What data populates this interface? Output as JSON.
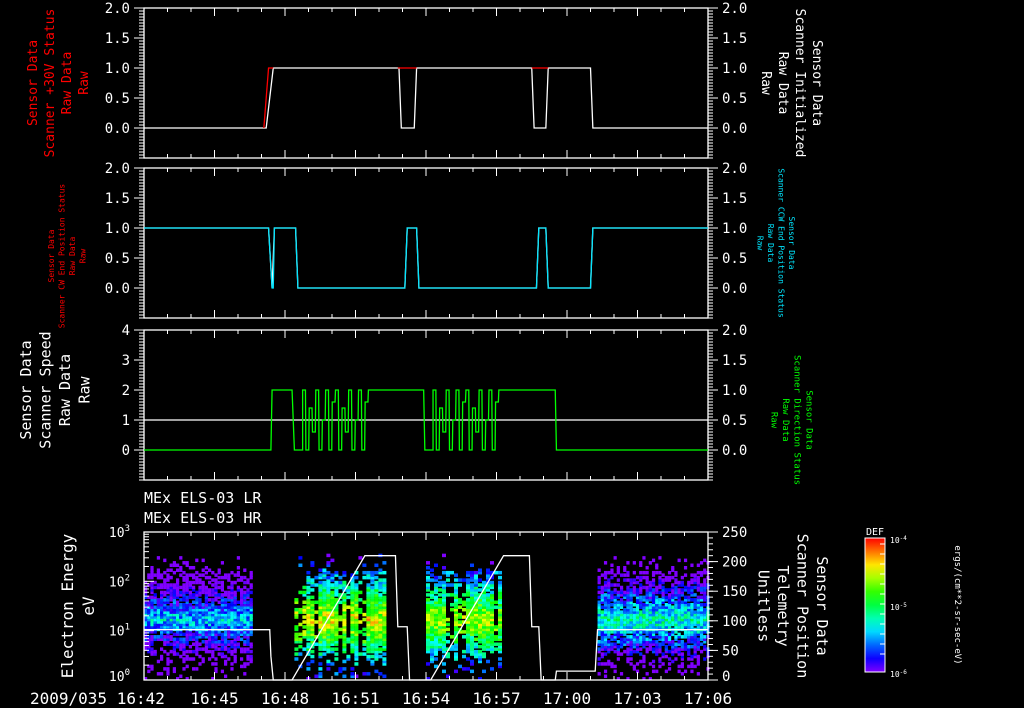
{
  "chart_data": [
    {
      "type": "line",
      "panel": "scanner-30v-initialized",
      "left_label": [
        "Sensor Data",
        "Scanner +30V Status",
        "Raw Data",
        "Raw"
      ],
      "right_label": [
        "Sensor Data",
        "Scanner Initialized",
        "Raw Data",
        "Raw"
      ],
      "left_color": "#ff0000",
      "right_color": "#ffffff",
      "ylim": [
        -0.5,
        2.0
      ],
      "yticks": [
        "0.0",
        "0.5",
        "1.0",
        "1.5",
        "2.0"
      ],
      "series": [
        {
          "name": "Scanner Initialized",
          "color": "#ffffff",
          "points": [
            [
              0,
              0
            ],
            [
              5.2,
              0
            ],
            [
              5.5,
              1
            ],
            [
              10.85,
              1
            ],
            [
              10.95,
              0
            ],
            [
              11.5,
              0
            ],
            [
              11.6,
              1
            ],
            [
              16.5,
              1
            ],
            [
              16.6,
              0
            ],
            [
              17.1,
              0
            ],
            [
              17.2,
              1
            ],
            [
              19.0,
              1
            ],
            [
              19.1,
              0
            ],
            [
              24,
              0
            ]
          ]
        },
        {
          "name": "Scanner +30V Status",
          "color": "#ff0000",
          "points": [
            [
              5.1,
              0
            ],
            [
              5.2,
              0.5
            ],
            [
              5.3,
              1
            ],
            [
              5.5,
              1
            ]
          ],
          "segments": [
            [
              [
                10.8,
                1
              ],
              [
                11.6,
                1
              ]
            ],
            [
              [
                16.5,
                1
              ],
              [
                17.2,
                1
              ]
            ]
          ]
        }
      ]
    },
    {
      "type": "line",
      "panel": "ccw-end-position",
      "left_label": [
        "Sensor Data",
        "Scanner CW End Position Status",
        "Raw Data",
        "Raw"
      ],
      "right_label": [
        "Sensor Data",
        "Scanner CCW End Position Status",
        "Raw Data",
        "Raw"
      ],
      "left_color": "#ff0000",
      "right_color": "#00e5ff",
      "ylim": [
        -0.5,
        2.0
      ],
      "yticks": [
        "0.0",
        "0.5",
        "1.0",
        "1.5",
        "2.0"
      ],
      "series": [
        {
          "name": "Scanner CW End Position Status",
          "color": "#ffffff",
          "points": [
            [
              0,
              1
            ],
            [
              5.3,
              1
            ],
            [
              5.45,
              0
            ],
            [
              5.55,
              1
            ],
            [
              6.45,
              1
            ],
            [
              6.55,
              0
            ],
            [
              11.1,
              0
            ],
            [
              11.2,
              1
            ],
            [
              11.6,
              1
            ],
            [
              11.7,
              0
            ],
            [
              16.7,
              0
            ],
            [
              16.8,
              1
            ],
            [
              17.1,
              1
            ],
            [
              17.2,
              0
            ],
            [
              19.0,
              0
            ],
            [
              19.1,
              1
            ],
            [
              24,
              1
            ]
          ]
        },
        {
          "name": "Scanner CCW End Position Status",
          "color": "#00e5ff",
          "points": [
            [
              0,
              1
            ],
            [
              5.3,
              1
            ],
            [
              5.45,
              0
            ],
            [
              5.5,
              0
            ],
            [
              5.55,
              1
            ],
            [
              6.45,
              1
            ],
            [
              6.55,
              0
            ],
            [
              11.1,
              0
            ],
            [
              11.2,
              1
            ],
            [
              11.6,
              1
            ],
            [
              11.7,
              0
            ],
            [
              16.7,
              0
            ],
            [
              16.8,
              1
            ],
            [
              17.1,
              1
            ],
            [
              17.2,
              0
            ],
            [
              19.0,
              0
            ],
            [
              19.1,
              1
            ],
            [
              24,
              1
            ]
          ]
        }
      ]
    },
    {
      "type": "line",
      "panel": "speed-direction",
      "left_label": [
        "Sensor Data",
        "Scanner Speed",
        "Raw Data",
        "Raw"
      ],
      "right_label": [
        "Sensor Data",
        "Scanner Direction Status",
        "Raw Data",
        "Raw"
      ],
      "left_color": "#ffffff",
      "right_color": "#00ff00",
      "ylim_left": [
        -1,
        4
      ],
      "yticks_left": [
        "0",
        "1",
        "2",
        "3",
        "4"
      ],
      "ylim_right": [
        -0.5,
        2.0
      ],
      "yticks_right": [
        "0.0",
        "0.5",
        "1.0",
        "1.5",
        "2.0"
      ],
      "speed": {
        "name": "Scanner Speed",
        "color": "#ffffff",
        "points": [
          [
            0,
            1
          ],
          [
            24,
            1
          ]
        ]
      },
      "direction": {
        "name": "Scanner Direction Status",
        "color": "#00ff00",
        "base": [
          [
            0,
            0
          ],
          [
            5.4,
            0
          ],
          [
            5.45,
            1
          ],
          [
            6.3,
            1
          ],
          [
            6.4,
            0
          ],
          [
            6.75,
            0
          ]
        ],
        "osc1": [
          6.75,
          9.6
        ],
        "mid": [
          [
            9.6,
            1
          ],
          [
            11.9,
            1
          ],
          [
            11.95,
            0
          ],
          [
            12.3,
            0
          ]
        ],
        "osc2": [
          12.3,
          15.2
        ],
        "tail": [
          [
            15.2,
            1
          ],
          [
            17.5,
            1
          ],
          [
            17.55,
            0
          ],
          [
            24,
            0
          ]
        ]
      }
    },
    {
      "type": "heatmap",
      "panel": "els-spectrogram",
      "titles": [
        "MEx ELS-03 LR",
        "MEx ELS-03 HR"
      ],
      "ylabel": [
        "Electron Energy",
        "eV"
      ],
      "ylim": [
        1,
        1000
      ],
      "yscale": "log",
      "yticks": [
        {
          "b": "10",
          "e": "0"
        },
        {
          "b": "10",
          "e": "1"
        },
        {
          "b": "10",
          "e": "2"
        },
        {
          "b": "10",
          "e": "3"
        }
      ],
      "right_label": [
        "Sensor Data",
        "Scanner Position",
        "Telemetry",
        "Unitless"
      ],
      "right_ylim": [
        0,
        250
      ],
      "right_yticks": [
        "0",
        "50",
        "100",
        "150",
        "200",
        "250"
      ],
      "blocks": [
        {
          "t": [
            0,
            4.5
          ],
          "peak_log_def": -5.1
        },
        {
          "t": [
            6.4,
            10.3
          ],
          "peak_log_def": -4.2
        },
        {
          "t": [
            12.0,
            15.2
          ],
          "peak_log_def": -4.3
        },
        {
          "t": [
            19.3,
            24
          ],
          "peak_log_def": -4.9
        }
      ],
      "scanner_position": {
        "color": "#ffffff",
        "points": [
          [
            0,
            85
          ],
          [
            5.35,
            85
          ],
          [
            5.4,
            40
          ],
          [
            5.5,
            0
          ],
          [
            6.3,
            0
          ],
          [
            9.4,
            210
          ],
          [
            10.7,
            210
          ],
          [
            10.8,
            90
          ],
          [
            11.2,
            90
          ],
          [
            11.3,
            0
          ],
          [
            12.2,
            0
          ],
          [
            15.3,
            210
          ],
          [
            16.4,
            210
          ],
          [
            16.5,
            90
          ],
          [
            16.8,
            90
          ],
          [
            16.9,
            0
          ],
          [
            17.5,
            0
          ],
          [
            17.55,
            15
          ],
          [
            19.2,
            15
          ],
          [
            19.3,
            85
          ],
          [
            24,
            85
          ]
        ]
      },
      "colorbar": {
        "title": "DEF",
        "ticks": [
          {
            "b": "10",
            "e": "-4"
          },
          {
            "b": "10",
            "e": "-5"
          },
          {
            "b": "10",
            "e": "-6"
          }
        ],
        "range_log": [
          -6,
          -4
        ],
        "units": "ergs/(cm**2-sr-sec-eV)"
      }
    }
  ],
  "x_axis": {
    "start_label": "2009/035 16:42",
    "ticks": [
      "16:45",
      "16:48",
      "16:51",
      "16:54",
      "16:57",
      "17:00",
      "17:03",
      "17:06"
    ],
    "range_minutes": [
      0,
      24
    ]
  }
}
